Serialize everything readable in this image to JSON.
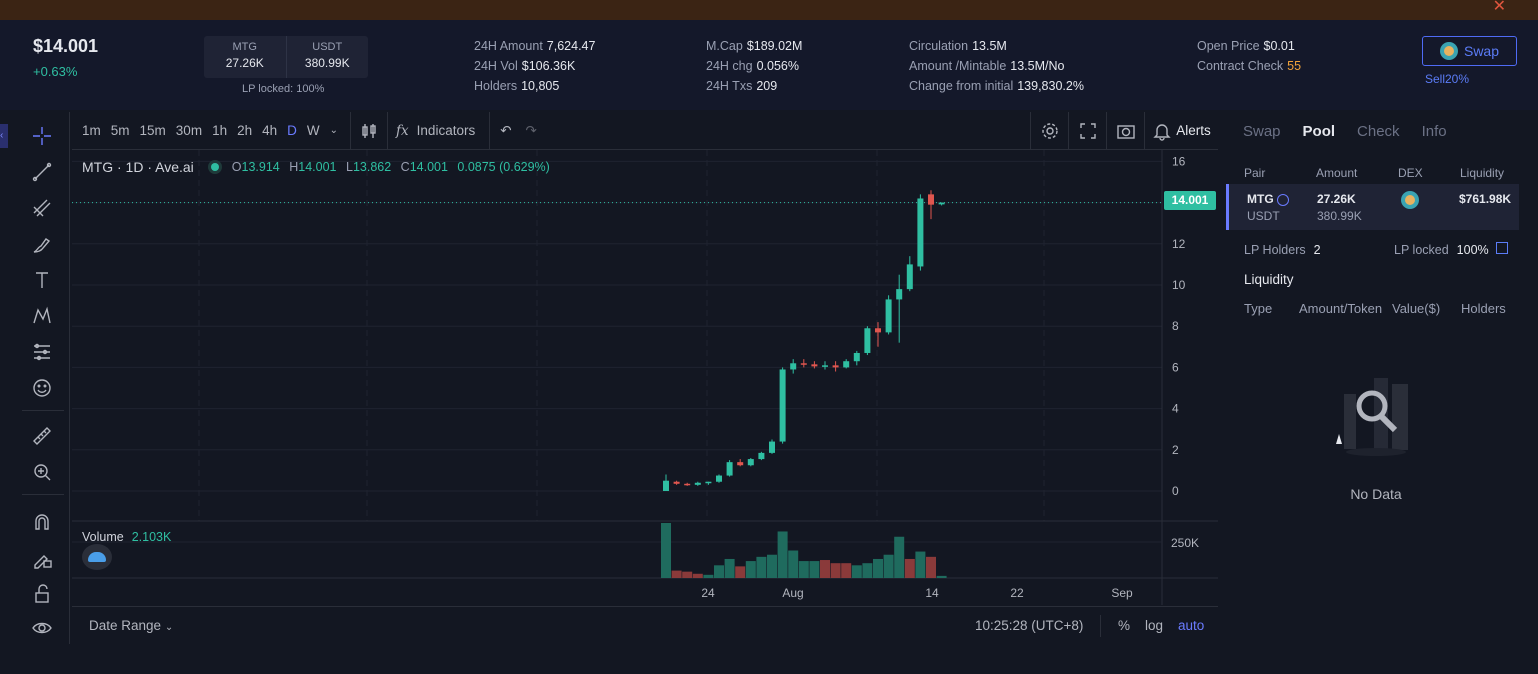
{
  "banner": {
    "close_glyph": "✕"
  },
  "header": {
    "price": "$14.001",
    "change": "+0.63%",
    "pair": {
      "base": "MTG",
      "base_amount": "27.26K",
      "quote": "USDT",
      "quote_amount": "380.99K"
    },
    "lp_locked": "LP locked: 100%",
    "stats": [
      [
        {
          "k": "24H Amount",
          "v": "7,624.47"
        },
        {
          "k": "24H Vol",
          "v": "$106.36K"
        },
        {
          "k": "Holders",
          "v": "10,805"
        }
      ],
      [
        {
          "k": "M.Cap",
          "v": "$189.02M"
        },
        {
          "k": "24H chg",
          "v": "0.056%"
        },
        {
          "k": "24H Txs",
          "v": "209"
        }
      ],
      [
        {
          "k": "Circulation",
          "v": "13.5M"
        },
        {
          "k": "Amount /Mintable",
          "v": "13.5M/No"
        },
        {
          "k": "Change from initial",
          "v": "139,830.2%"
        }
      ],
      [
        {
          "k": "Open Price",
          "v": "$0.01"
        },
        {
          "k": "Contract Check",
          "v": "55"
        }
      ]
    ],
    "swap_label": "Swap",
    "sell_label": "Sell20%"
  },
  "toolbar": {
    "timeframes": [
      "1m",
      "5m",
      "15m",
      "30m",
      "1h",
      "2h",
      "4h",
      "D",
      "W"
    ],
    "active_timeframe": "D",
    "indicators_label": "Indicators",
    "alerts_label": "Alerts"
  },
  "legend": {
    "symbol": "MTG · 1D · Ave.ai",
    "o_label": "O",
    "o": "13.914",
    "h_label": "H",
    "h": "14.001",
    "l_label": "L",
    "l": "13.862",
    "c_label": "C",
    "c": "14.001",
    "chg": "0.0875 (0.629%)",
    "volume_label": "Volume",
    "volume_value": "2.103K"
  },
  "last_price_tag": "14.001",
  "bottom": {
    "date_range": "Date Range",
    "time": "10:25:28 (UTC+8)",
    "pct": "%",
    "log": "log",
    "auto": "auto"
  },
  "chart_data": {
    "type": "candlestick",
    "y_ticks": [
      "16",
      "12",
      "10",
      "8",
      "6",
      "4",
      "2",
      "0"
    ],
    "ylim": [
      0,
      16
    ],
    "volume_tick": "250K",
    "x_ticks": [
      "24",
      "Aug",
      "14",
      "22",
      "Sep"
    ],
    "up_color": "#2fbfa2",
    "down_color": "#e0564f",
    "candles": [
      {
        "o": 0.0,
        "h": 0.8,
        "l": 0.0,
        "c": 0.5
      },
      {
        "o": 0.45,
        "h": 0.5,
        "l": 0.3,
        "c": 0.35
      },
      {
        "o": 0.35,
        "h": 0.4,
        "l": 0.25,
        "c": 0.3
      },
      {
        "o": 0.3,
        "h": 0.45,
        "l": 0.25,
        "c": 0.4
      },
      {
        "o": 0.4,
        "h": 0.45,
        "l": 0.3,
        "c": 0.45
      },
      {
        "o": 0.45,
        "h": 0.8,
        "l": 0.4,
        "c": 0.75
      },
      {
        "o": 0.75,
        "h": 1.5,
        "l": 0.7,
        "c": 1.4
      },
      {
        "o": 1.4,
        "h": 1.55,
        "l": 1.2,
        "c": 1.25
      },
      {
        "o": 1.25,
        "h": 1.6,
        "l": 1.2,
        "c": 1.55
      },
      {
        "o": 1.55,
        "h": 1.9,
        "l": 1.5,
        "c": 1.85
      },
      {
        "o": 1.85,
        "h": 2.5,
        "l": 1.8,
        "c": 2.4
      },
      {
        "o": 2.4,
        "h": 6.0,
        "l": 2.3,
        "c": 5.9
      },
      {
        "o": 5.9,
        "h": 6.4,
        "l": 5.7,
        "c": 6.2
      },
      {
        "o": 6.2,
        "h": 6.4,
        "l": 6.0,
        "c": 6.15
      },
      {
        "o": 6.15,
        "h": 6.3,
        "l": 5.95,
        "c": 6.05
      },
      {
        "o": 6.05,
        "h": 6.3,
        "l": 5.9,
        "c": 6.1
      },
      {
        "o": 6.1,
        "h": 6.3,
        "l": 5.8,
        "c": 6.0
      },
      {
        "o": 6.0,
        "h": 6.4,
        "l": 5.95,
        "c": 6.3
      },
      {
        "o": 6.3,
        "h": 6.8,
        "l": 6.1,
        "c": 6.7
      },
      {
        "o": 6.7,
        "h": 8.0,
        "l": 6.6,
        "c": 7.9
      },
      {
        "o": 7.9,
        "h": 8.2,
        "l": 7.0,
        "c": 7.7
      },
      {
        "o": 7.7,
        "h": 9.5,
        "l": 7.6,
        "c": 9.3
      },
      {
        "o": 9.3,
        "h": 10.5,
        "l": 7.2,
        "c": 9.8
      },
      {
        "o": 9.8,
        "h": 11.4,
        "l": 9.7,
        "c": 11.0
      },
      {
        "o": 10.9,
        "h": 14.4,
        "l": 10.7,
        "c": 14.2
      },
      {
        "o": 14.4,
        "h": 14.6,
        "l": 13.2,
        "c": 13.9
      },
      {
        "o": 13.914,
        "h": 14.001,
        "l": 13.862,
        "c": 14.001
      }
    ],
    "volume_series": [
      {
        "v": 260,
        "up": true
      },
      {
        "v": 35,
        "up": false
      },
      {
        "v": 30,
        "up": false
      },
      {
        "v": 20,
        "up": false
      },
      {
        "v": 15,
        "up": true
      },
      {
        "v": 60,
        "up": true
      },
      {
        "v": 90,
        "up": true
      },
      {
        "v": 55,
        "up": false
      },
      {
        "v": 80,
        "up": true
      },
      {
        "v": 100,
        "up": true
      },
      {
        "v": 110,
        "up": true
      },
      {
        "v": 220,
        "up": true
      },
      {
        "v": 130,
        "up": true
      },
      {
        "v": 80,
        "up": true
      },
      {
        "v": 80,
        "up": true
      },
      {
        "v": 85,
        "up": false
      },
      {
        "v": 70,
        "up": false
      },
      {
        "v": 70,
        "up": false
      },
      {
        "v": 60,
        "up": true
      },
      {
        "v": 70,
        "up": true
      },
      {
        "v": 90,
        "up": true
      },
      {
        "v": 110,
        "up": true
      },
      {
        "v": 195,
        "up": true
      },
      {
        "v": 90,
        "up": false
      },
      {
        "v": 125,
        "up": true
      },
      {
        "v": 100,
        "up": false
      },
      {
        "v": 10,
        "up": true
      }
    ]
  },
  "side_panel": {
    "tabs": [
      "Swap",
      "Pool",
      "Check",
      "Info"
    ],
    "active_tab": "Pool",
    "pool_headers": [
      "Pair",
      "Amount",
      "DEX",
      "Liquidity"
    ],
    "pool_row": {
      "base": "MTG",
      "quote": "USDT",
      "base_amount": "27.26K",
      "quote_amount": "380.99K",
      "liquidity": "$761.98K"
    },
    "lp_holders_label": "LP Holders",
    "lp_holders": "2",
    "lp_locked_label": "LP locked",
    "lp_locked": "100%",
    "liquidity_title": "Liquidity",
    "liquidity_headers": [
      "Type",
      "Amount/Token",
      "Value($)",
      "Holders"
    ],
    "no_data": "No Data"
  }
}
